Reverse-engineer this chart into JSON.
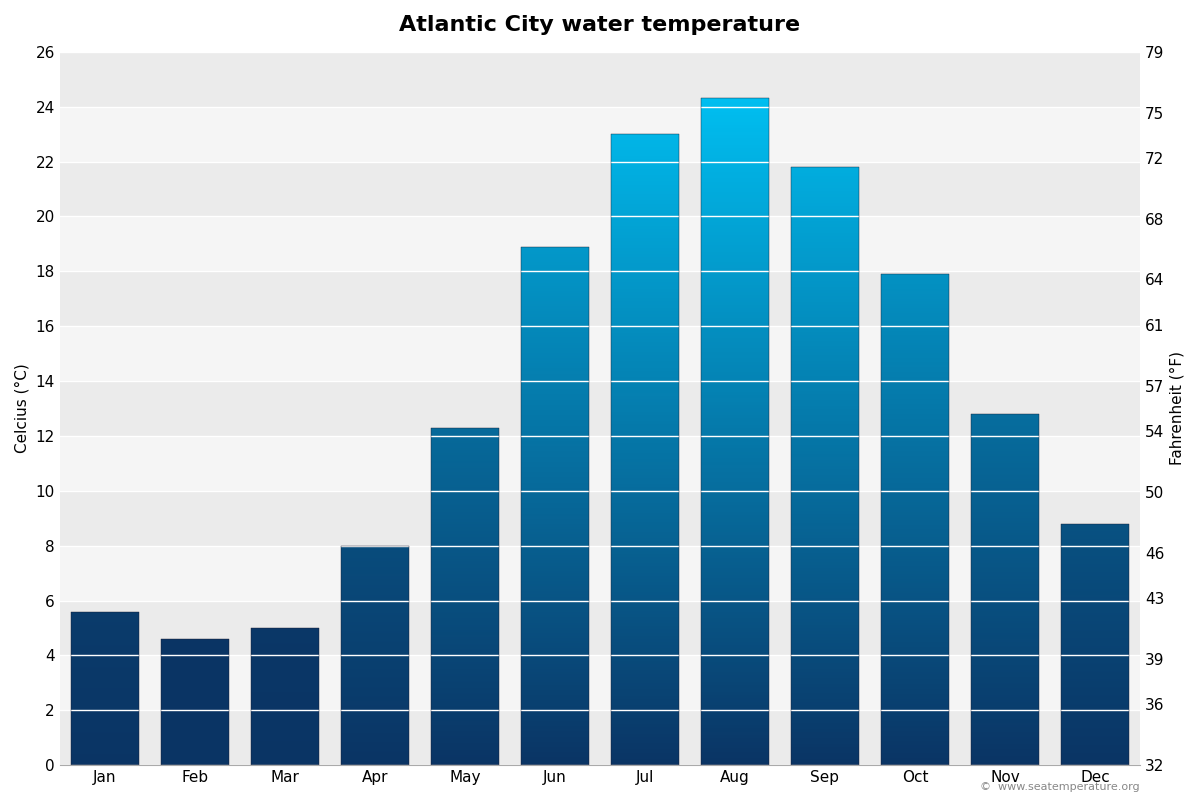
{
  "title": "Atlantic City water temperature",
  "months": [
    "Jan",
    "Feb",
    "Mar",
    "Apr",
    "May",
    "Jun",
    "Jul",
    "Aug",
    "Sep",
    "Oct",
    "Nov",
    "Dec"
  ],
  "celsius": [
    5.6,
    4.6,
    5.0,
    8.0,
    12.3,
    18.9,
    23.0,
    24.3,
    21.8,
    17.9,
    12.8,
    8.8
  ],
  "ylim_c": [
    0,
    26
  ],
  "yticks_c": [
    0,
    2,
    4,
    6,
    8,
    10,
    12,
    14,
    16,
    18,
    20,
    22,
    24,
    26
  ],
  "yticks_f": [
    32,
    36,
    39,
    43,
    46,
    50,
    54,
    57,
    61,
    64,
    68,
    72,
    75,
    79
  ],
  "ylabel_left": "Celcius (°C)",
  "ylabel_right": "Fahrenheit (°F)",
  "color_cold_bottom": "#0a3464",
  "color_warm_top": "#00bef0",
  "bg_color": "#ffffff",
  "band_light": "#f0f0f0",
  "band_dark": "#e0e0e0",
  "watermark": "©  www.seatemperature.org",
  "title_fontsize": 16,
  "label_fontsize": 11,
  "tick_fontsize": 11,
  "bar_width": 0.75
}
